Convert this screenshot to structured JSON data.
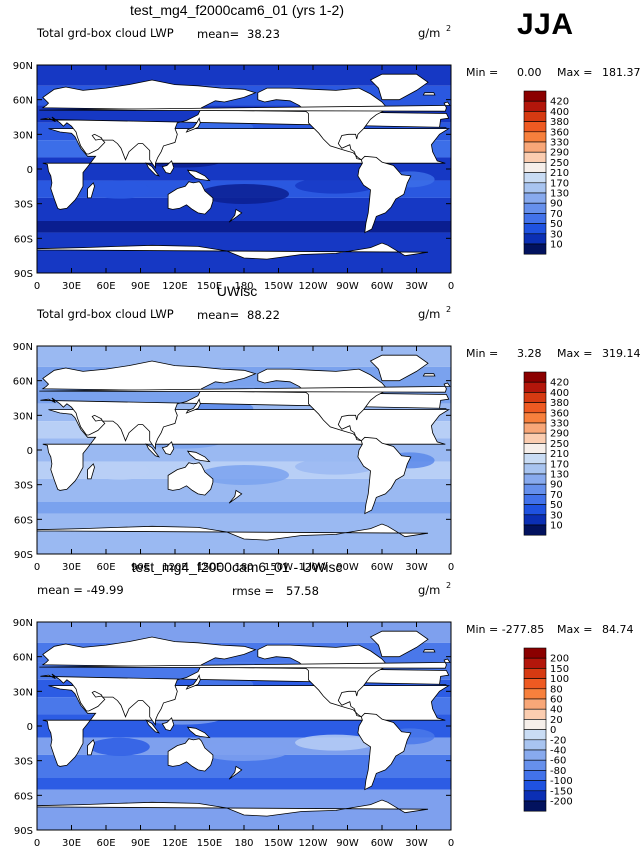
{
  "season": "JJA",
  "chart_data": [
    {
      "type": "heatmap",
      "title": "test_mg4_f2000cam6_01 (yrs 1-2)",
      "left_label": "Total grd-box cloud LWP",
      "mean_label": "mean=",
      "mean_value": "38.23",
      "units_base": "g/m",
      "units_exp": "2",
      "min_label": "Min =",
      "min_value": "0.00",
      "max_label": "Max =",
      "max_value": "181.37",
      "colorbar_levels": [
        "420",
        "400",
        "380",
        "360",
        "330",
        "290",
        "250",
        "210",
        "170",
        "130",
        "90",
        "70",
        "50",
        "30",
        "10"
      ],
      "colorbar_colors": [
        "#8b0000",
        "#b3160b",
        "#d63a12",
        "#ee5a22",
        "#f7803d",
        "#f8a778",
        "#fbcdb0",
        "#f6efea",
        "#c9dcf4",
        "#a8c4f0",
        "#88aaee",
        "#6690ec",
        "#4272ea",
        "#1f52e0",
        "#0b2fb4",
        "#02125e"
      ],
      "map_palette": [
        "#0a1e90",
        "#1638c4",
        "#2a58e0",
        "#3c6ee8"
      ],
      "x_ticks": [
        "0",
        "30E",
        "60E",
        "90E",
        "120E",
        "150E",
        "180",
        "150W",
        "120W",
        "90W",
        "60W",
        "30W",
        "0"
      ],
      "y_ticks": [
        "90N",
        "60N",
        "30N",
        "0",
        "30S",
        "60S",
        "90S"
      ]
    },
    {
      "type": "heatmap",
      "title": "UWisc",
      "left_label": "Total grd-box cloud LWP",
      "mean_label": "mean=",
      "mean_value": "88.22",
      "units_base": "g/m",
      "units_exp": "2",
      "min_label": "Min =",
      "min_value": "3.28",
      "max_label": "Max =",
      "max_value": "319.14",
      "colorbar_levels": [
        "420",
        "400",
        "380",
        "360",
        "330",
        "290",
        "250",
        "210",
        "170",
        "130",
        "90",
        "70",
        "50",
        "30",
        "10"
      ],
      "colorbar_colors": [
        "#8b0000",
        "#b3160b",
        "#d63a12",
        "#ee5a22",
        "#f7803d",
        "#f8a778",
        "#fbcdb0",
        "#f6efea",
        "#c9dcf4",
        "#a8c4f0",
        "#88aaee",
        "#6690ec",
        "#4272ea",
        "#1f52e0",
        "#0b2fb4",
        "#02125e"
      ],
      "map_palette": [
        "#5a88ea",
        "#7aa2ee",
        "#9ab9f2",
        "#b8cff6"
      ],
      "x_ticks": [
        "0",
        "30E",
        "60E",
        "90E",
        "120E",
        "150E",
        "180",
        "150W",
        "120W",
        "90W",
        "60W",
        "30W",
        "0"
      ],
      "y_ticks": [
        "90N",
        "60N",
        "30N",
        "0",
        "30S",
        "60S",
        "90S"
      ]
    },
    {
      "type": "heatmap",
      "title": "test_mg4_f2000cam6_01 - UWisc",
      "left_label": "mean = -49.99",
      "mean_label": "rmse =",
      "mean_value": "57.58",
      "units_base": "g/m",
      "units_exp": "2",
      "min_label": "Min = -277.85",
      "min_value": "",
      "max_label": "Max =",
      "max_value": "84.74",
      "colorbar_levels": [
        "200",
        "150",
        "100",
        "80",
        "60",
        "40",
        "20",
        "0",
        "-20",
        "-40",
        "-60",
        "-80",
        "-100",
        "-150",
        "-200"
      ],
      "colorbar_colors": [
        "#8b0000",
        "#b3160b",
        "#d63a12",
        "#ee5a22",
        "#f7803d",
        "#f8a778",
        "#fbcdb0",
        "#f6efea",
        "#c9dcf4",
        "#a8c4f0",
        "#88aaee",
        "#6690ec",
        "#4272ea",
        "#1f52e0",
        "#0b2fb4",
        "#02125e"
      ],
      "map_palette": [
        "#2c5ce4",
        "#4a78ea",
        "#7ea0ee",
        "#b6ccf4"
      ],
      "x_ticks": [
        "0",
        "30E",
        "60E",
        "90E",
        "120E",
        "150E",
        "180",
        "150W",
        "120W",
        "90W",
        "60W",
        "30W",
        "0"
      ],
      "y_ticks": [
        "90N",
        "60N",
        "30N",
        "0",
        "30S",
        "60S",
        "90S"
      ]
    }
  ]
}
